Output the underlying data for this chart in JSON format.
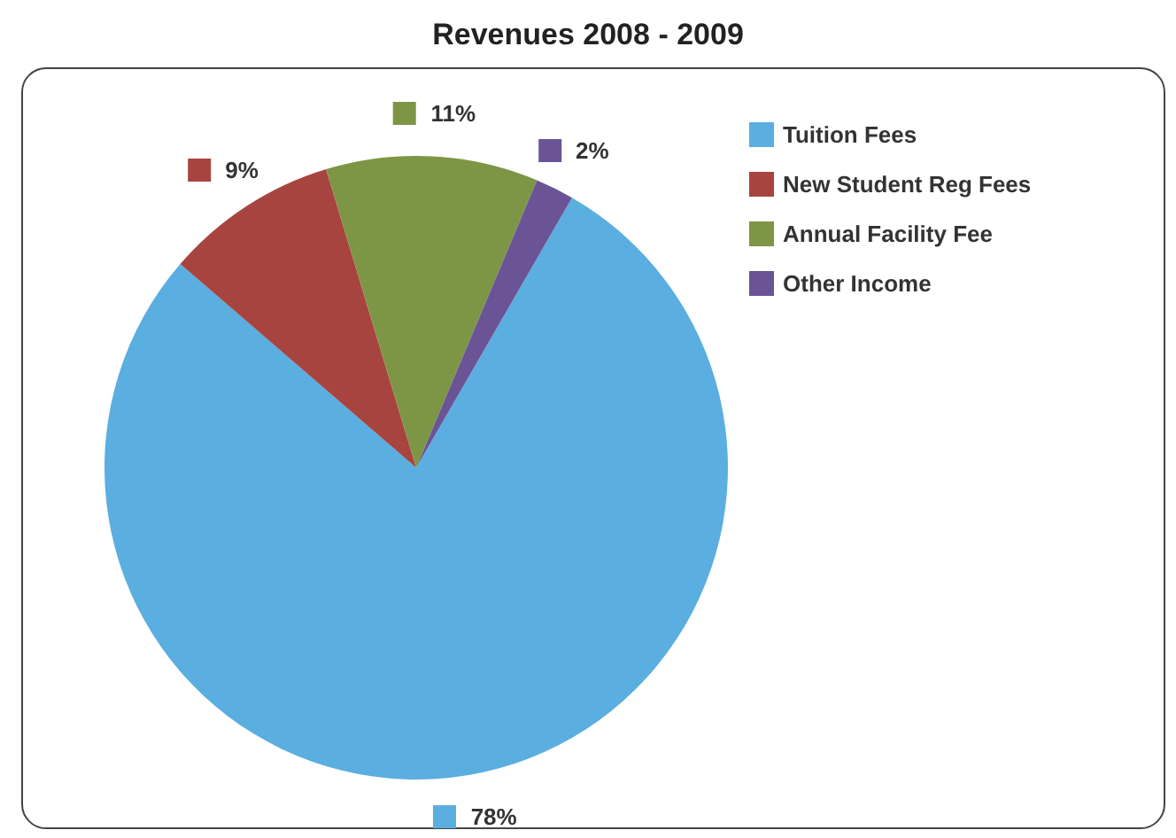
{
  "chart_data": {
    "type": "pie",
    "title": "Revenues 2008 - 2009",
    "categories": [
      "Tuition Fees",
      "New Student Reg Fees",
      "Annual Facility Fee",
      "Other Income"
    ],
    "values": [
      78,
      9,
      11,
      2
    ],
    "colors": [
      "#5aaee0",
      "#a8443f",
      "#7d9645",
      "#6a5496"
    ],
    "value_labels": [
      "78%",
      "9%",
      "11%",
      "2%"
    ],
    "legend": "top right"
  }
}
